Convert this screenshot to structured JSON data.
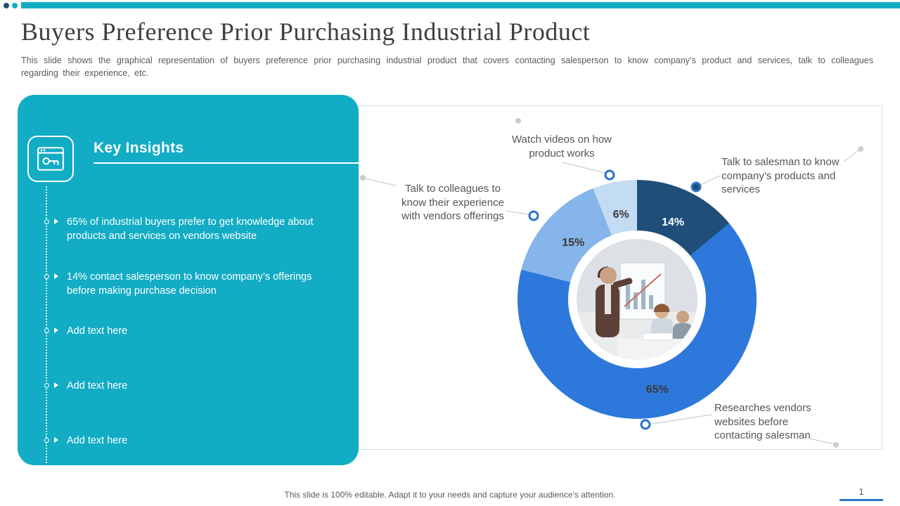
{
  "header": {
    "title": "Buyers Preference Prior Purchasing Industrial Product",
    "subtitle": "This slide shows the graphical representation of buyers preference prior purchasing industrial product that covers contacting salesperson to know company’s product and services, talk to colleagues regarding their experience, etc."
  },
  "insights": {
    "title": "Key Insights",
    "items": [
      "65% of industrial buyers prefer to get knowledge about products and services on vendors website",
      "14% contact salesperson to know company’s offerings before making purchase decision",
      "Add text here",
      "Add text here",
      "Add text here"
    ]
  },
  "chart_data": {
    "type": "pie",
    "title": "",
    "donut": true,
    "start_angle_deg": 0,
    "direction": "clockwise",
    "legend_position": "callouts",
    "slices": [
      {
        "label": "Talk to salesman to know company’s products and services",
        "value": 14,
        "display": "14%",
        "color": "#1F4E79",
        "value_color": "#FFFFFF"
      },
      {
        "label": "Researches vendors websites before contacting salesman",
        "value": 65,
        "display": "65%",
        "color": "#2E78DB",
        "value_color": "#3A3A3A"
      },
      {
        "label": "Talk to colleagues to know their experience with vendors offerings",
        "value": 15,
        "display": "15%",
        "color": "#85B5EA",
        "value_color": "#3A3A3A"
      },
      {
        "label": "Watch videos on how product works",
        "value": 6,
        "display": "6%",
        "color": "#C3DCF4",
        "value_color": "#3A3A3A"
      }
    ]
  },
  "footer": {
    "note": "This slide is 100% editable. Adapt it to your needs and capture your audience's attention.",
    "page": "1"
  },
  "colors": {
    "accent_teal": "#12ACC4",
    "accent_blue": "#2D74CB",
    "navy": "#1F4E79",
    "text_dark": "#3F3F3F",
    "text_gray": "#595959"
  }
}
